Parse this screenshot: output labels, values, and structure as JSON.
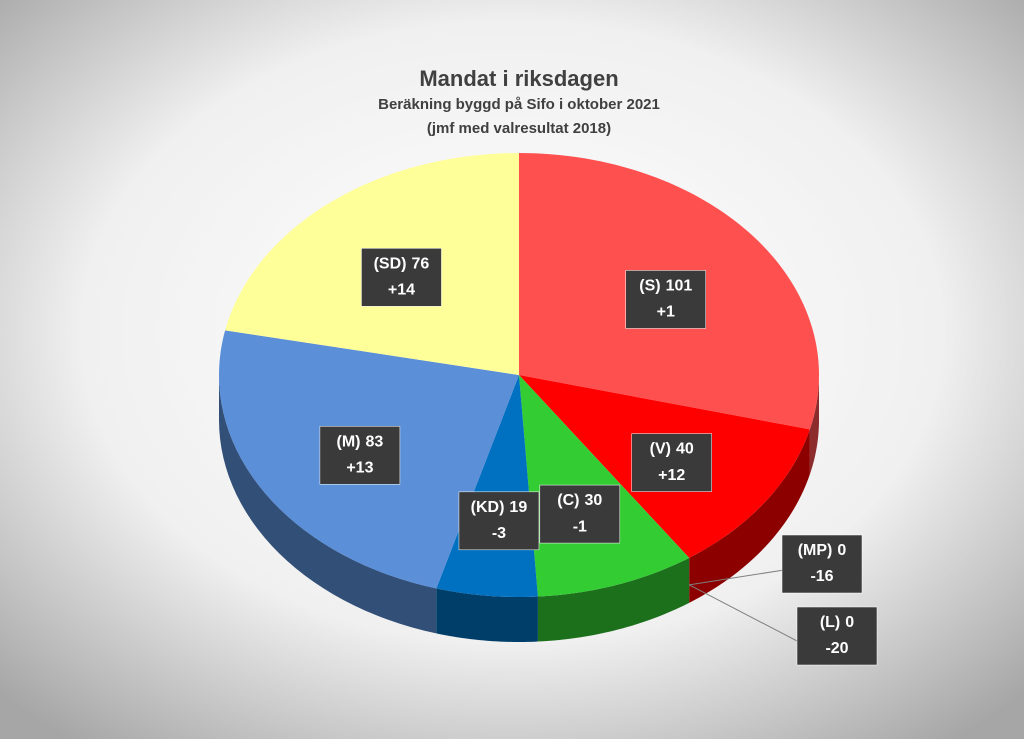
{
  "chart_data": {
    "type": "pie",
    "title": "Mandat i riksdagen",
    "subtitle": "Beräkning byggd på Sifo i oktober 2021",
    "subtitle2": "(jmf med valresultat 2018)",
    "categories": [
      "(S)",
      "(V)",
      "(MP)",
      "(L)",
      "(C)",
      "(KD)",
      "(M)",
      "(SD)"
    ],
    "values": [
      101,
      40,
      0,
      0,
      30,
      19,
      83,
      76
    ],
    "changes": [
      "+1",
      "+12",
      "-16",
      "-20",
      "-1",
      "-3",
      "+13",
      "+14"
    ],
    "colors": [
      "#ff5050",
      "#ff0000",
      "#00b050",
      "#ffc000",
      "#33cc33",
      "#0070c0",
      "#5b8fd8",
      "#ffff99"
    ]
  }
}
